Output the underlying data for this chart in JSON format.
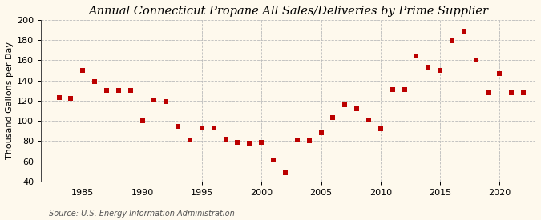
{
  "title": "Annual Connecticut Propane All Sales/Deliveries by Prime Supplier",
  "ylabel": "Thousand Gallons per Day",
  "source": "Source: U.S. Energy Information Administration",
  "background_color": "#fef9ed",
  "xlim": [
    1981.5,
    2023
  ],
  "ylim": [
    40,
    200
  ],
  "yticks": [
    40,
    60,
    80,
    100,
    120,
    140,
    160,
    180,
    200
  ],
  "xticks": [
    1985,
    1990,
    1995,
    2000,
    2005,
    2010,
    2015,
    2020
  ],
  "years": [
    1983,
    1984,
    1985,
    1986,
    1987,
    1988,
    1989,
    1990,
    1991,
    1992,
    1993,
    1994,
    1995,
    1996,
    1997,
    1998,
    1999,
    2000,
    2001,
    2002,
    2003,
    2004,
    2005,
    2006,
    2007,
    2008,
    2009,
    2010,
    2011,
    2012,
    2013,
    2014,
    2015,
    2016,
    2017,
    2018,
    2019,
    2020,
    2021,
    2022
  ],
  "values": [
    123,
    122,
    150,
    139,
    130,
    130,
    130,
    100,
    121,
    119,
    95,
    81,
    93,
    93,
    82,
    79,
    78,
    79,
    61,
    49,
    81,
    80,
    88,
    103,
    116,
    112,
    101,
    92,
    131,
    131,
    164,
    153,
    150,
    179,
    189,
    160,
    128,
    147,
    128,
    128
  ],
  "marker_color": "#bb0000",
  "marker_size": 18,
  "grid_color": "#bbbbbb",
  "grid_linestyle": "--",
  "title_fontsize": 10.5,
  "label_fontsize": 8,
  "tick_fontsize": 8,
  "source_fontsize": 7
}
